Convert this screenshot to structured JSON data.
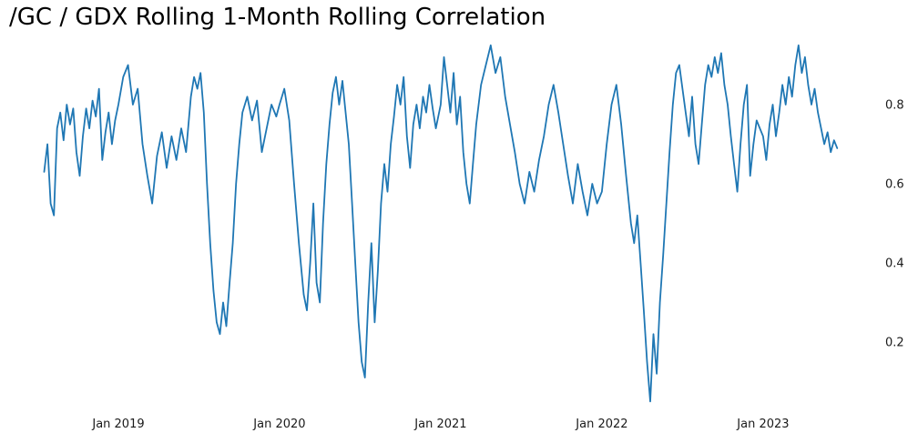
{
  "chart_data": {
    "type": "line",
    "title": "/GC / GDX Rolling 1-Month Rolling Correlation",
    "xlabel": "",
    "ylabel": "",
    "xlim": [
      2018.52,
      2023.56
    ],
    "ylim": [
      0.0,
      1.0
    ],
    "grid": false,
    "legend": "none",
    "y_axis_side": "right",
    "line_color": "#1f77b4",
    "x_ticks": [
      {
        "label": "Jan 2019",
        "x": 2019.0
      },
      {
        "label": "Jan 2020",
        "x": 2020.0
      },
      {
        "label": "Jan 2021",
        "x": 2021.0
      },
      {
        "label": "Jan 2022",
        "x": 2022.0
      },
      {
        "label": "Jan 2023",
        "x": 2023.0
      }
    ],
    "y_ticks": [
      {
        "label": "0.2",
        "y": 0.2
      },
      {
        "label": "0.4",
        "y": 0.4
      },
      {
        "label": "0.6",
        "y": 0.6
      },
      {
        "label": "0.8",
        "y": 0.8
      }
    ],
    "series": [
      {
        "name": "GC/GDX rolling 1-month correlation",
        "points": [
          [
            2018.54,
            0.63
          ],
          [
            2018.56,
            0.7
          ],
          [
            2018.58,
            0.55
          ],
          [
            2018.6,
            0.52
          ],
          [
            2018.62,
            0.74
          ],
          [
            2018.64,
            0.78
          ],
          [
            2018.66,
            0.71
          ],
          [
            2018.68,
            0.8
          ],
          [
            2018.7,
            0.75
          ],
          [
            2018.72,
            0.79
          ],
          [
            2018.74,
            0.68
          ],
          [
            2018.76,
            0.62
          ],
          [
            2018.78,
            0.72
          ],
          [
            2018.8,
            0.79
          ],
          [
            2018.82,
            0.74
          ],
          [
            2018.84,
            0.81
          ],
          [
            2018.86,
            0.77
          ],
          [
            2018.88,
            0.84
          ],
          [
            2018.9,
            0.66
          ],
          [
            2018.92,
            0.73
          ],
          [
            2018.94,
            0.78
          ],
          [
            2018.96,
            0.7
          ],
          [
            2018.98,
            0.76
          ],
          [
            2019.0,
            0.8
          ],
          [
            2019.03,
            0.87
          ],
          [
            2019.06,
            0.9
          ],
          [
            2019.09,
            0.8
          ],
          [
            2019.12,
            0.84
          ],
          [
            2019.15,
            0.7
          ],
          [
            2019.18,
            0.62
          ],
          [
            2019.21,
            0.55
          ],
          [
            2019.24,
            0.67
          ],
          [
            2019.27,
            0.73
          ],
          [
            2019.3,
            0.64
          ],
          [
            2019.33,
            0.72
          ],
          [
            2019.36,
            0.66
          ],
          [
            2019.39,
            0.74
          ],
          [
            2019.42,
            0.68
          ],
          [
            2019.45,
            0.82
          ],
          [
            2019.47,
            0.87
          ],
          [
            2019.49,
            0.84
          ],
          [
            2019.51,
            0.88
          ],
          [
            2019.53,
            0.78
          ],
          [
            2019.55,
            0.6
          ],
          [
            2019.57,
            0.45
          ],
          [
            2019.59,
            0.33
          ],
          [
            2019.61,
            0.25
          ],
          [
            2019.63,
            0.22
          ],
          [
            2019.65,
            0.3
          ],
          [
            2019.67,
            0.24
          ],
          [
            2019.69,
            0.35
          ],
          [
            2019.71,
            0.45
          ],
          [
            2019.73,
            0.6
          ],
          [
            2019.75,
            0.7
          ],
          [
            2019.77,
            0.78
          ],
          [
            2019.8,
            0.82
          ],
          [
            2019.83,
            0.76
          ],
          [
            2019.86,
            0.81
          ],
          [
            2019.89,
            0.68
          ],
          [
            2019.92,
            0.74
          ],
          [
            2019.95,
            0.8
          ],
          [
            2019.98,
            0.77
          ],
          [
            2020.0,
            0.8
          ],
          [
            2020.03,
            0.84
          ],
          [
            2020.06,
            0.76
          ],
          [
            2020.09,
            0.6
          ],
          [
            2020.12,
            0.45
          ],
          [
            2020.15,
            0.32
          ],
          [
            2020.17,
            0.28
          ],
          [
            2020.19,
            0.4
          ],
          [
            2020.21,
            0.55
          ],
          [
            2020.23,
            0.35
          ],
          [
            2020.25,
            0.3
          ],
          [
            2020.27,
            0.5
          ],
          [
            2020.29,
            0.65
          ],
          [
            2020.31,
            0.75
          ],
          [
            2020.33,
            0.83
          ],
          [
            2020.35,
            0.87
          ],
          [
            2020.37,
            0.8
          ],
          [
            2020.39,
            0.86
          ],
          [
            2020.41,
            0.78
          ],
          [
            2020.43,
            0.7
          ],
          [
            2020.45,
            0.55
          ],
          [
            2020.47,
            0.4
          ],
          [
            2020.49,
            0.25
          ],
          [
            2020.51,
            0.15
          ],
          [
            2020.53,
            0.11
          ],
          [
            2020.55,
            0.3
          ],
          [
            2020.57,
            0.45
          ],
          [
            2020.59,
            0.25
          ],
          [
            2020.61,
            0.38
          ],
          [
            2020.63,
            0.55
          ],
          [
            2020.65,
            0.65
          ],
          [
            2020.67,
            0.58
          ],
          [
            2020.69,
            0.7
          ],
          [
            2020.71,
            0.77
          ],
          [
            2020.73,
            0.85
          ],
          [
            2020.75,
            0.8
          ],
          [
            2020.77,
            0.87
          ],
          [
            2020.79,
            0.72
          ],
          [
            2020.81,
            0.64
          ],
          [
            2020.83,
            0.75
          ],
          [
            2020.85,
            0.8
          ],
          [
            2020.87,
            0.74
          ],
          [
            2020.89,
            0.82
          ],
          [
            2020.91,
            0.78
          ],
          [
            2020.93,
            0.85
          ],
          [
            2020.95,
            0.79
          ],
          [
            2020.97,
            0.74
          ],
          [
            2021.0,
            0.8
          ],
          [
            2021.02,
            0.92
          ],
          [
            2021.04,
            0.85
          ],
          [
            2021.06,
            0.78
          ],
          [
            2021.08,
            0.88
          ],
          [
            2021.1,
            0.75
          ],
          [
            2021.12,
            0.82
          ],
          [
            2021.14,
            0.68
          ],
          [
            2021.16,
            0.6
          ],
          [
            2021.18,
            0.55
          ],
          [
            2021.2,
            0.65
          ],
          [
            2021.22,
            0.75
          ],
          [
            2021.25,
            0.85
          ],
          [
            2021.28,
            0.9
          ],
          [
            2021.31,
            0.95
          ],
          [
            2021.34,
            0.88
          ],
          [
            2021.37,
            0.92
          ],
          [
            2021.4,
            0.82
          ],
          [
            2021.43,
            0.75
          ],
          [
            2021.46,
            0.68
          ],
          [
            2021.49,
            0.6
          ],
          [
            2021.52,
            0.55
          ],
          [
            2021.55,
            0.63
          ],
          [
            2021.58,
            0.58
          ],
          [
            2021.61,
            0.66
          ],
          [
            2021.64,
            0.72
          ],
          [
            2021.67,
            0.8
          ],
          [
            2021.7,
            0.85
          ],
          [
            2021.73,
            0.78
          ],
          [
            2021.76,
            0.7
          ],
          [
            2021.79,
            0.62
          ],
          [
            2021.82,
            0.55
          ],
          [
            2021.85,
            0.65
          ],
          [
            2021.88,
            0.58
          ],
          [
            2021.91,
            0.52
          ],
          [
            2021.94,
            0.6
          ],
          [
            2021.97,
            0.55
          ],
          [
            2022.0,
            0.58
          ],
          [
            2022.03,
            0.7
          ],
          [
            2022.06,
            0.8
          ],
          [
            2022.09,
            0.85
          ],
          [
            2022.12,
            0.75
          ],
          [
            2022.15,
            0.62
          ],
          [
            2022.18,
            0.5
          ],
          [
            2022.2,
            0.45
          ],
          [
            2022.22,
            0.52
          ],
          [
            2022.24,
            0.4
          ],
          [
            2022.26,
            0.28
          ],
          [
            2022.28,
            0.15
          ],
          [
            2022.3,
            0.05
          ],
          [
            2022.32,
            0.22
          ],
          [
            2022.34,
            0.12
          ],
          [
            2022.36,
            0.3
          ],
          [
            2022.38,
            0.42
          ],
          [
            2022.4,
            0.55
          ],
          [
            2022.42,
            0.68
          ],
          [
            2022.44,
            0.8
          ],
          [
            2022.46,
            0.88
          ],
          [
            2022.48,
            0.9
          ],
          [
            2022.5,
            0.84
          ],
          [
            2022.52,
            0.78
          ],
          [
            2022.54,
            0.72
          ],
          [
            2022.56,
            0.82
          ],
          [
            2022.58,
            0.7
          ],
          [
            2022.6,
            0.65
          ],
          [
            2022.62,
            0.75
          ],
          [
            2022.64,
            0.85
          ],
          [
            2022.66,
            0.9
          ],
          [
            2022.68,
            0.87
          ],
          [
            2022.7,
            0.92
          ],
          [
            2022.72,
            0.88
          ],
          [
            2022.74,
            0.93
          ],
          [
            2022.76,
            0.85
          ],
          [
            2022.78,
            0.8
          ],
          [
            2022.8,
            0.72
          ],
          [
            2022.82,
            0.65
          ],
          [
            2022.84,
            0.58
          ],
          [
            2022.86,
            0.7
          ],
          [
            2022.88,
            0.8
          ],
          [
            2022.9,
            0.85
          ],
          [
            2022.92,
            0.62
          ],
          [
            2022.94,
            0.7
          ],
          [
            2022.96,
            0.76
          ],
          [
            2023.0,
            0.72
          ],
          [
            2023.02,
            0.66
          ],
          [
            2023.04,
            0.75
          ],
          [
            2023.06,
            0.8
          ],
          [
            2023.08,
            0.72
          ],
          [
            2023.1,
            0.78
          ],
          [
            2023.12,
            0.85
          ],
          [
            2023.14,
            0.8
          ],
          [
            2023.16,
            0.87
          ],
          [
            2023.18,
            0.82
          ],
          [
            2023.2,
            0.9
          ],
          [
            2023.22,
            0.95
          ],
          [
            2023.24,
            0.88
          ],
          [
            2023.26,
            0.92
          ],
          [
            2023.28,
            0.85
          ],
          [
            2023.3,
            0.8
          ],
          [
            2023.32,
            0.84
          ],
          [
            2023.34,
            0.78
          ],
          [
            2023.36,
            0.74
          ],
          [
            2023.38,
            0.7
          ],
          [
            2023.4,
            0.73
          ],
          [
            2023.42,
            0.68
          ],
          [
            2023.44,
            0.71
          ],
          [
            2023.46,
            0.69
          ]
        ]
      }
    ]
  }
}
